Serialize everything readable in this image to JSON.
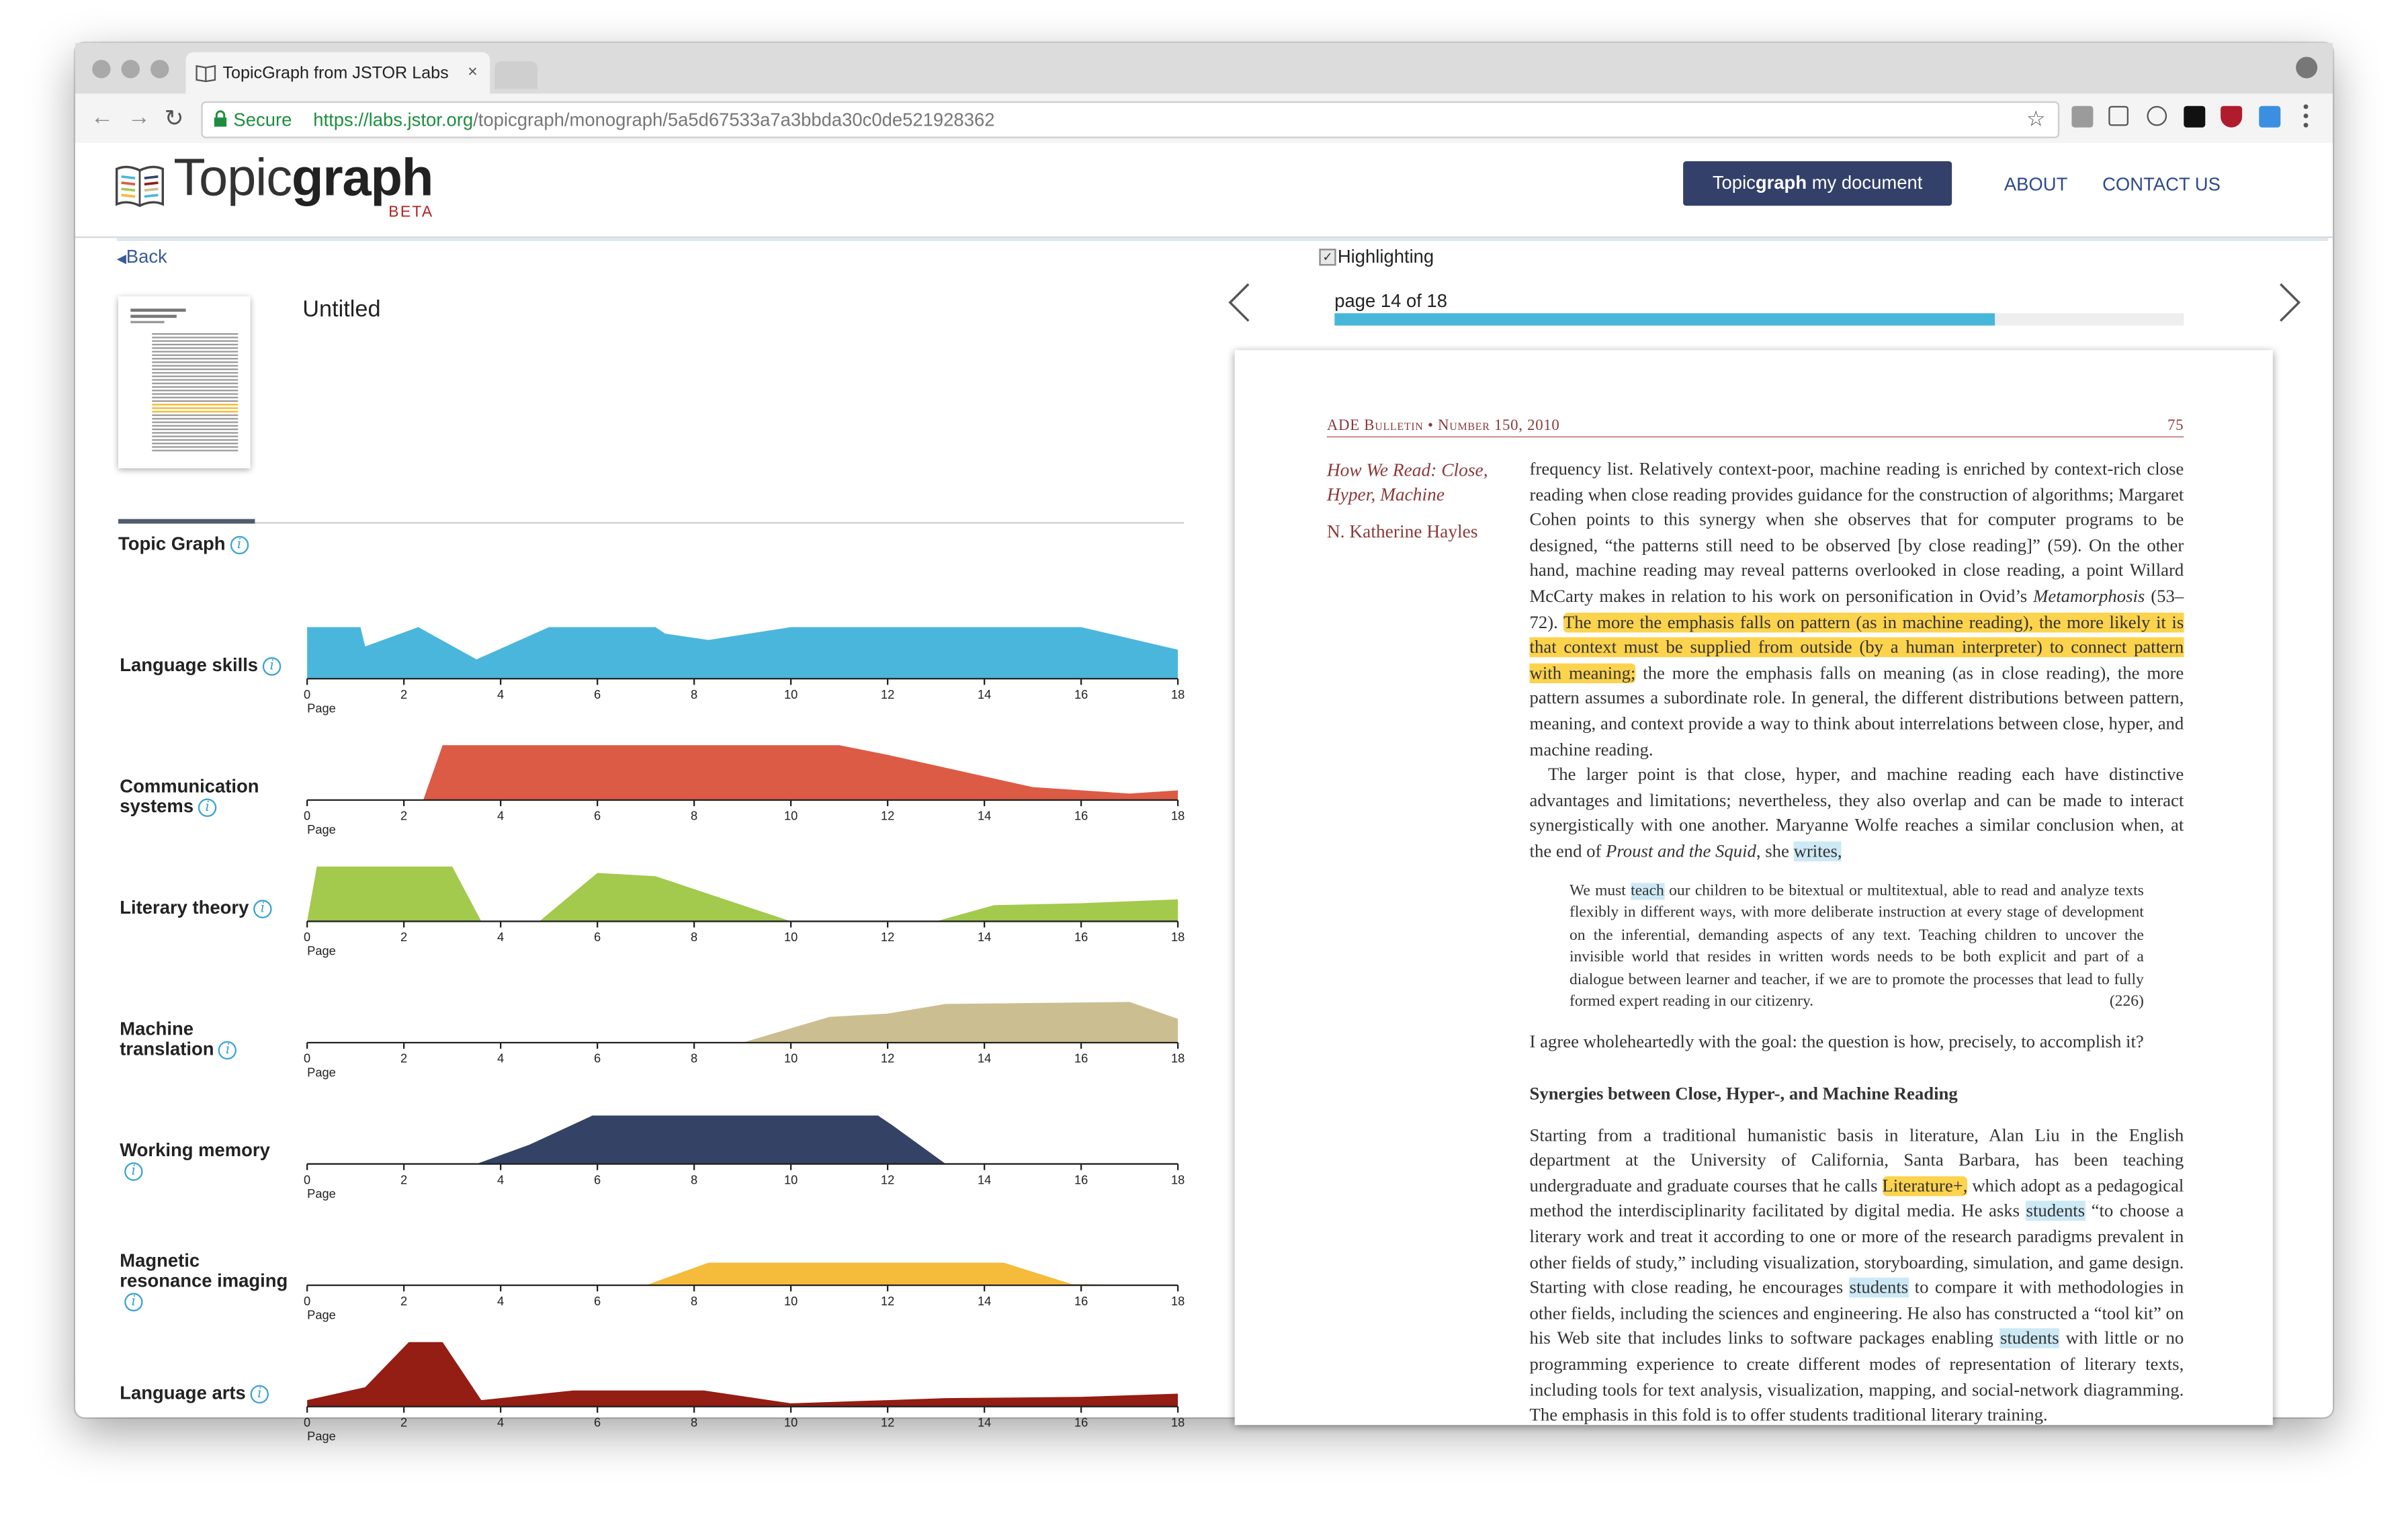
{
  "browser": {
    "tab_title": "TopicGraph from JSTOR Labs",
    "tab_close": "×",
    "secure_label": "Secure",
    "url_host": "https://labs.jstor.org",
    "url_path": "/topicgraph/monograph/5a5d67533a7a3bbda30c0de521928362",
    "back_icon": "←",
    "forward_icon": "→",
    "reload_icon": "↻",
    "star_icon": "☆"
  },
  "site": {
    "logo_light": "Topic",
    "logo_bold": "graph",
    "logo_badge": "BETA",
    "cta_light": "Topic",
    "cta_bold": "graph",
    "cta_rest": " my document",
    "nav": [
      "ABOUT",
      "CONTACT US"
    ]
  },
  "left": {
    "back_label": "Back",
    "doc_title": "Untitled",
    "topic_graph_label": "Topic Graph",
    "info_icon_char": "i",
    "axis_label": "Page",
    "ticks": [
      0,
      2,
      4,
      6,
      8,
      10,
      12,
      14,
      16,
      18
    ]
  },
  "chart_data": {
    "type": "area",
    "xlabel": "Page",
    "x_ticks": [
      0,
      2,
      4,
      6,
      8,
      10,
      12,
      14,
      16,
      18
    ],
    "xlim": [
      0,
      18
    ],
    "ylim": [
      0,
      1
    ],
    "series": [
      {
        "name": "Language skills",
        "color": "#4bb6dc",
        "points": [
          [
            0,
            0.8
          ],
          [
            1.1,
            0.8
          ],
          [
            1.2,
            0.5
          ],
          [
            2.3,
            0.8
          ],
          [
            3.5,
            0.3
          ],
          [
            5,
            0.8
          ],
          [
            7.2,
            0.8
          ],
          [
            7.4,
            0.7
          ],
          [
            8.3,
            0.6
          ],
          [
            10,
            0.8
          ],
          [
            16,
            0.8
          ],
          [
            18,
            0.45
          ]
        ]
      },
      {
        "name": "Communication systems",
        "color": "#dc5b45",
        "points": [
          [
            2.4,
            0
          ],
          [
            2.8,
            0.85
          ],
          [
            11,
            0.85
          ],
          [
            12,
            0.7
          ],
          [
            15,
            0.2
          ],
          [
            17,
            0.1
          ],
          [
            18,
            0.15
          ]
        ]
      },
      {
        "name": "Literary theory",
        "color": "#a3c94d",
        "points": [
          [
            0,
            0
          ],
          [
            0.2,
            0.85
          ],
          [
            3,
            0.85
          ],
          [
            3.6,
            0
          ],
          [
            4.8,
            0
          ],
          [
            6,
            0.75
          ],
          [
            7.2,
            0.7
          ],
          [
            10,
            0
          ],
          [
            13,
            0
          ],
          [
            14.2,
            0.25
          ],
          [
            16,
            0.28
          ],
          [
            18,
            0.34
          ]
        ]
      },
      {
        "name": "Machine translation",
        "color": "#cbbf91",
        "points": [
          [
            8.5,
            0
          ],
          [
            9,
            0
          ],
          [
            10.8,
            0.4
          ],
          [
            12,
            0.45
          ],
          [
            13.2,
            0.6
          ],
          [
            17,
            0.63
          ],
          [
            18,
            0.37
          ]
        ]
      },
      {
        "name": "Working memory",
        "color": "#344265",
        "points": [
          [
            3.5,
            0
          ],
          [
            4.6,
            0.3
          ],
          [
            5.9,
            0.75
          ],
          [
            11.8,
            0.75
          ],
          [
            12.1,
            0.6
          ],
          [
            13.2,
            0
          ]
        ]
      },
      {
        "name": "Magnetic resonance imaging",
        "color": "#f5bb3b",
        "points": [
          [
            7,
            0
          ],
          [
            8.3,
            0.35
          ],
          [
            14.4,
            0.35
          ],
          [
            15.8,
            0.02
          ],
          [
            18,
            0
          ]
        ]
      },
      {
        "name": "Language arts",
        "color": "#941d14",
        "points": [
          [
            0,
            0.1
          ],
          [
            1.2,
            0.3
          ],
          [
            2.1,
            1
          ],
          [
            2.8,
            1
          ],
          [
            3.6,
            0.1
          ],
          [
            5.5,
            0.25
          ],
          [
            8.2,
            0.25
          ],
          [
            10,
            0.05
          ],
          [
            12,
            0.1
          ],
          [
            13.2,
            0.13
          ],
          [
            16,
            0.15
          ],
          [
            18,
            0.2
          ]
        ]
      }
    ]
  },
  "right": {
    "highlighting_label": "Highlighting",
    "page_label": "page 14 of 18",
    "page_current": 14,
    "page_total": 18,
    "running_head": "ADE Bulletin • Number 150, 2010",
    "folio": "75",
    "article_title_1": "How We Read: Close,",
    "article_title_2": "Hyper, Machine",
    "author": "N. Katherine Hayles",
    "p1_a": "frequency list. Relatively context-poor, machine reading is enriched by context-rich close reading when close reading provides guidance for the construction of algorithms; Margaret Cohen points to this synergy when she observes that for computer programs to be designed, “the patterns still need to be observed [by close reading]” (59). On the other hand, machine reading may reveal patterns overlooked in close reading, a point Willard McCarty makes in relation to his work on personification in Ovid’s ",
    "p1_italic": "Metamorphosis",
    "p1_b": " (53–72). ",
    "p1_hl": "The more the emphasis falls on pattern (as in machine reading), the more likely it is that context must be supplied from outside (by a human interpreter) to connect pattern with meaning;",
    "p1_c": " the more the emphasis falls on meaning (as in close reading), the more pattern assumes a subordinate role. In general, the different distributions between pattern, meaning, and context provide a way to think about interrelations between close, hyper, and machine reading.",
    "p2_a": "The larger point is that close, hyper, and machine reading each have distinctive advantages and limitations; nevertheless, they also overlap and can be made to interact synergistically with one another. Maryanne Wolfe reaches a similar conclusion when, at the end of ",
    "p2_italic": "Proust and the Squid",
    "p2_b": ", she ",
    "p2_hl": "writes,",
    "q_a": "We must ",
    "q_hl": "teach",
    "q_b": " our children to be bitextual or multitextual, able to read and analyze texts flexibly in different ways, with more deliberate instruction at every stage of development on the inferential, demanding aspects of any text. Teaching children to uncover the invisible world that resides in written words needs to be both explicit and part of a dialogue between learner and teacher, if we are to promote the processes that lead to fully formed expert reading in our citizenry.",
    "q_cite": "(226)",
    "p3": "I agree wholeheartedly with the goal: the question is how, precisely, to accomplish it?",
    "subhead": "Synergies between Close, Hyper-, and Machine Reading",
    "p4_a": "Starting from a traditional humanistic basis in literature, Alan Liu in the English department at the University of California, Santa Barbara, has been teaching undergraduate and graduate courses that he calls ",
    "p4_hl1": "Literature+,",
    "p4_b": " which adopt as a pedagogical method the interdisciplinarity facilitated by digital media. He asks ",
    "p4_hl2": "students",
    "p4_c": " “to choose a literary work and treat it according to one or more of the research paradigms prevalent in other fields of study,” including visualization, storyboarding, simulation, and game design. Starting with close reading, he encourages ",
    "p4_hl3": "students",
    "p4_d": " to compare it with methodologies in other fields, including the sciences and engineering. He also has constructed a “tool kit” on his Web site that includes links to software packages enabling ",
    "p4_hl4": "students",
    "p4_e": " with little or no programming experience to create different modes of representation of literary texts, including tools for text analysis, visualization, mapping, and social-network diagramming. The emphasis in this fold is to offer students traditional literary training."
  }
}
